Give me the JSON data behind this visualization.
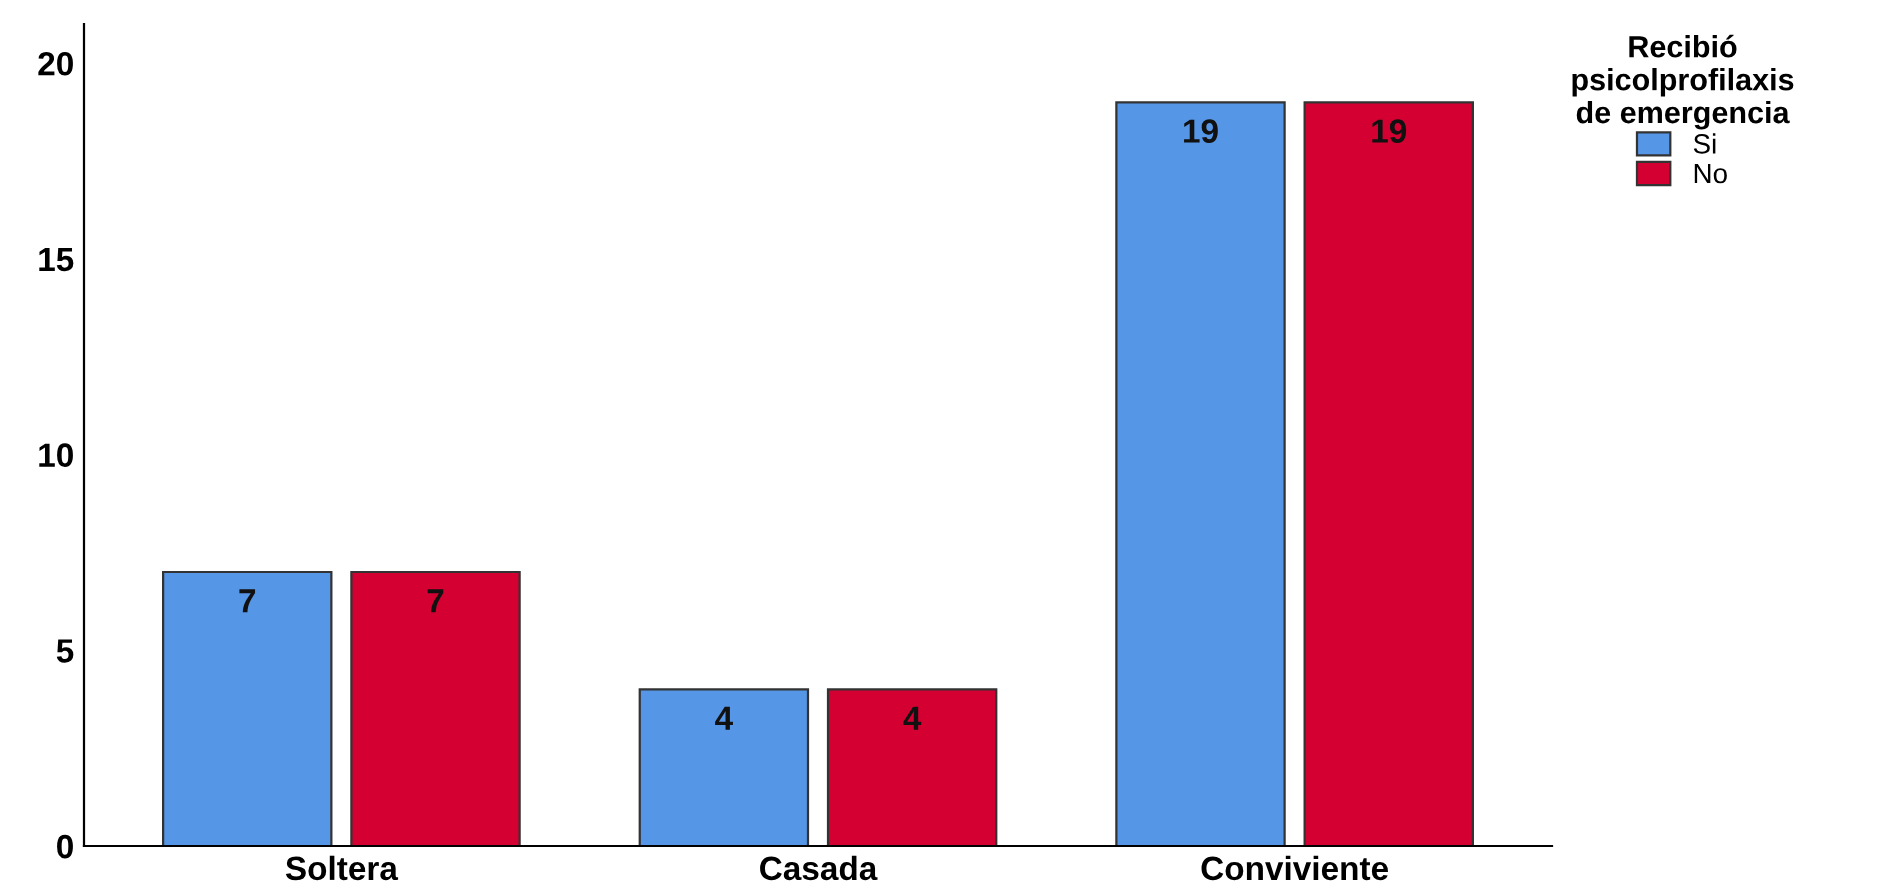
{
  "chart_data": {
    "type": "bar",
    "categories": [
      "Soltera",
      "Casada",
      "Conviviente"
    ],
    "series": [
      {
        "name": "Si",
        "color": "#5596e6",
        "values": [
          7,
          4,
          19
        ]
      },
      {
        "name": "No",
        "color": "#d50032",
        "values": [
          7,
          4,
          19
        ]
      }
    ],
    "legend_title": "Recibió\npsicolprofilaxis\nde emergencia",
    "legend": "top right",
    "ylim": [
      0,
      21
    ],
    "yticks": [
      0,
      5,
      10,
      15,
      20
    ],
    "grid": false,
    "data_labels": true
  }
}
